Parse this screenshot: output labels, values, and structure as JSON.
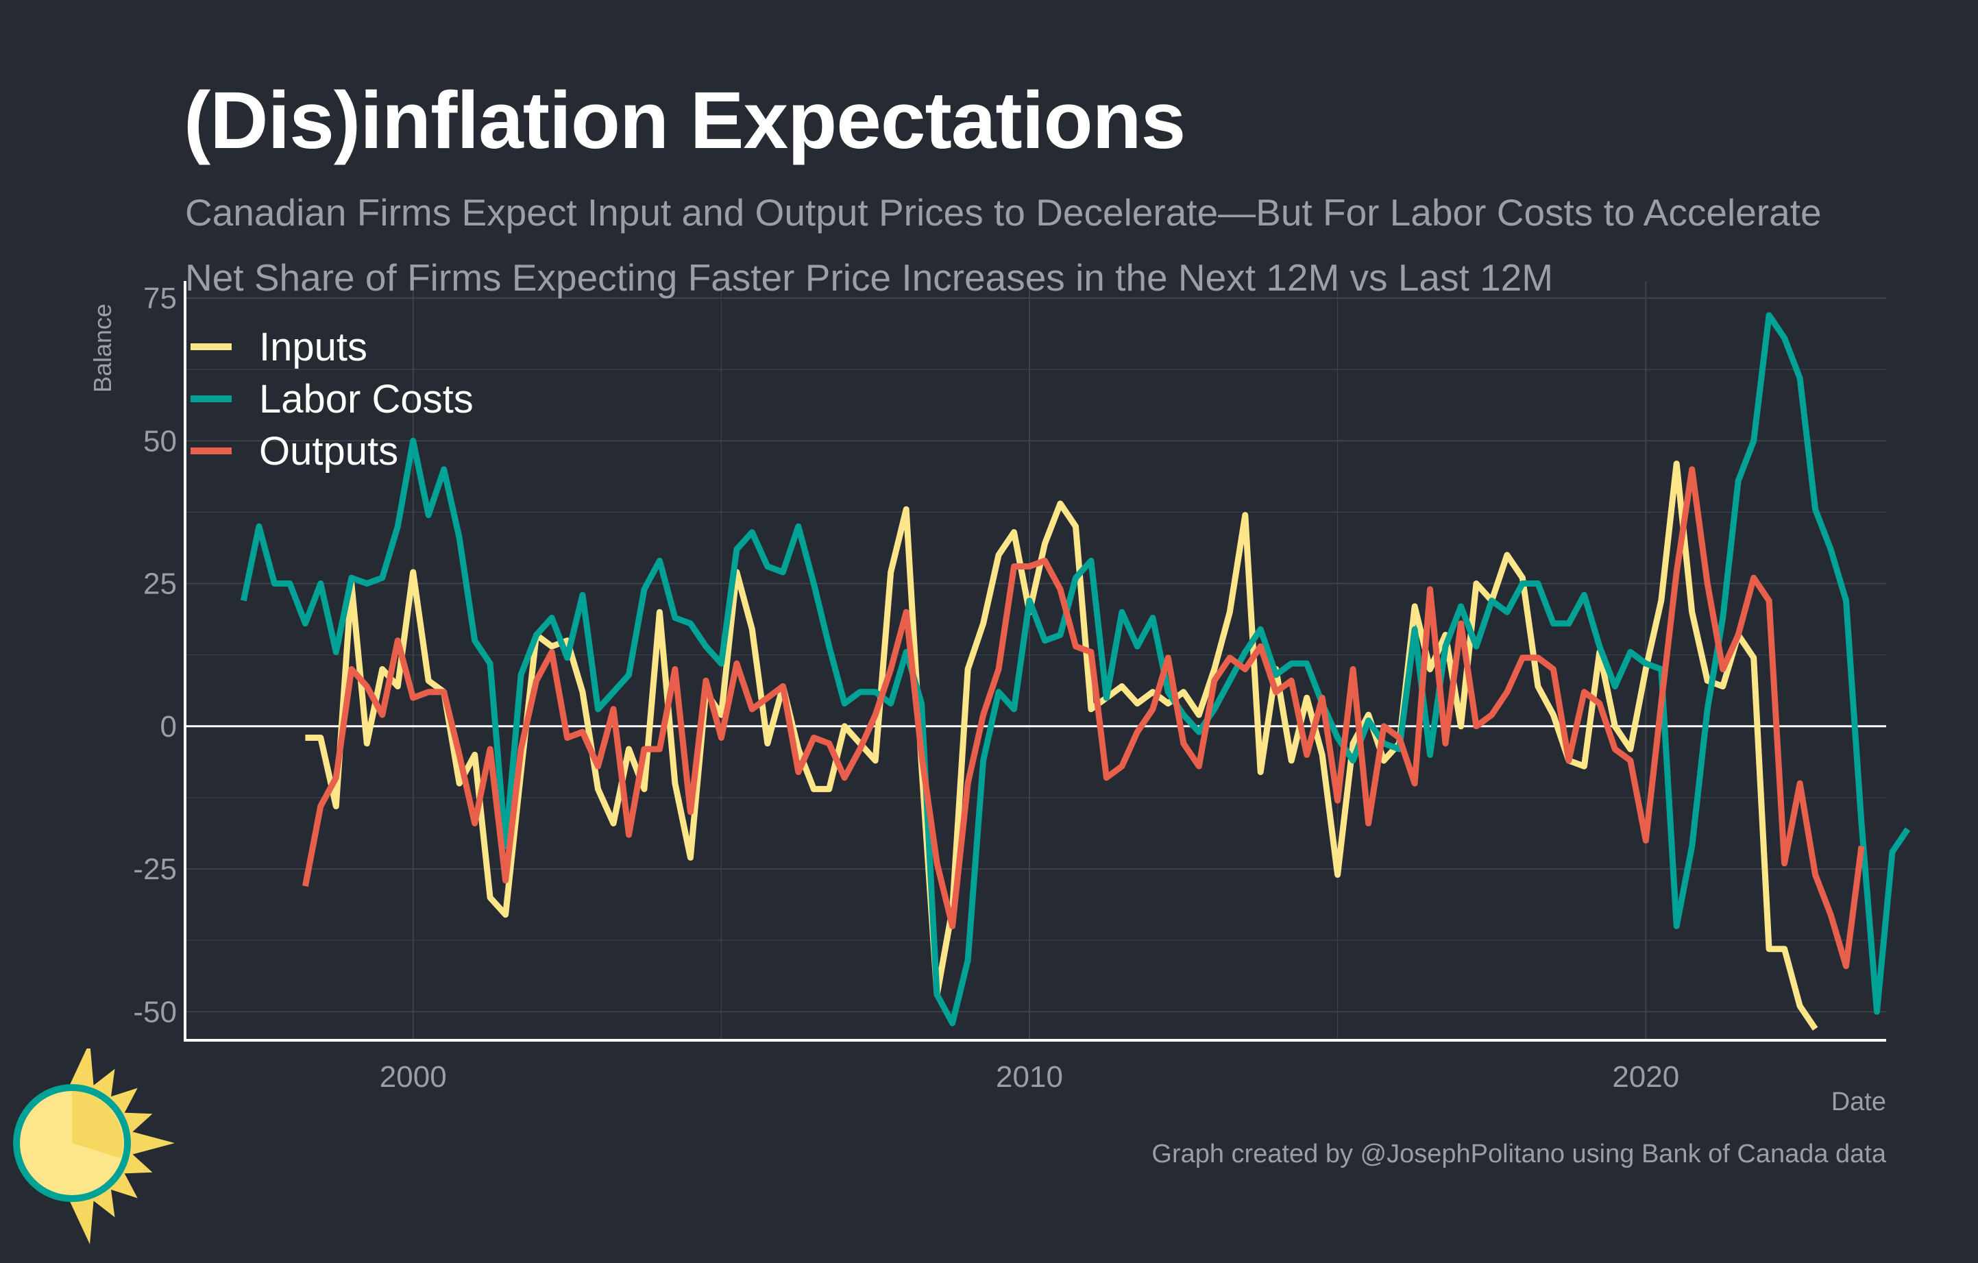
{
  "title": "(Dis)inflation Expectations",
  "subtitle": "Canadian Firms Expect Input and Output Prices to Decelerate—But For Labor Costs to Accelerate",
  "note": "Net Share of Firms Expecting Faster Price Increases in the Next 12M vs Last 12M",
  "caption": "Graph created by @JosephPolitano using Bank of Canada data",
  "colors": {
    "background": "#252a33",
    "grid": "#3d424b",
    "axis": "#ffffff",
    "text_muted": "#9a9ea6",
    "inputs": "#fde68a",
    "labor_costs": "#00a295",
    "outputs": "#e8604c"
  },
  "logo_icon": "sun-icon",
  "chart_data": {
    "type": "line",
    "xlabel": "Date",
    "ylabel": "Balance",
    "xlim": [
      1996.3,
      2023.9
    ],
    "ylim": [
      -55,
      78
    ],
    "x_ticks": [
      2000,
      2010,
      2020
    ],
    "x_tick_labels": [
      "2000",
      "2010",
      "2020"
    ],
    "y_ticks": [
      -50,
      -25,
      0,
      25,
      50,
      75
    ],
    "y_tick_labels": [
      "-50",
      "-25",
      "0",
      "25",
      "50",
      "75"
    ],
    "grid": true,
    "legend_position": "top-left",
    "series": [
      {
        "name": "Inputs",
        "color_key": "inputs",
        "start": 1998.25,
        "step": 0.25,
        "values": [
          -2,
          -2,
          -14,
          25,
          -3,
          10,
          7,
          27,
          8,
          6,
          -10,
          -5,
          -30,
          -33,
          -8,
          16,
          14,
          15,
          6,
          -11,
          -17,
          -4,
          -11,
          20,
          -10,
          -23,
          6,
          2,
          27,
          17,
          -3,
          7,
          -4,
          -11,
          -11,
          0,
          -3,
          -6,
          27,
          38,
          -7,
          -47,
          -32,
          10,
          18,
          30,
          34,
          20,
          32,
          39,
          35,
          3,
          5,
          7,
          4,
          6,
          4,
          6,
          2,
          10,
          20,
          37,
          -8,
          10,
          -6,
          5,
          -5,
          -26,
          -3,
          2,
          -6,
          -3,
          21,
          10,
          16,
          0,
          25,
          22,
          30,
          26,
          7,
          2,
          -6,
          -7,
          13,
          0,
          -4,
          10,
          22,
          46,
          20,
          8,
          7,
          16,
          12,
          -39,
          -39,
          -49,
          -53
        ]
      },
      {
        "name": "Labor Costs",
        "color_key": "labor_costs",
        "start": 1997.25,
        "step": 0.25,
        "values": [
          22,
          35,
          25,
          25,
          18,
          25,
          13,
          26,
          25,
          26,
          35,
          50,
          37,
          45,
          33,
          15,
          11,
          -21,
          9,
          16,
          19,
          12,
          23,
          3,
          6,
          9,
          24,
          29,
          19,
          18,
          14,
          11,
          31,
          34,
          28,
          27,
          35,
          25,
          14,
          4,
          6,
          6,
          4,
          13,
          4,
          -47,
          -52,
          -41,
          -6,
          6,
          3,
          22,
          15,
          16,
          26,
          29,
          5,
          20,
          14,
          19,
          6,
          2,
          -1,
          3,
          8,
          13,
          17,
          9,
          11,
          11,
          4,
          -2,
          -6,
          1,
          -3,
          -4,
          17,
          -5,
          14,
          21,
          14,
          22,
          20,
          25,
          25,
          18,
          18,
          23,
          14,
          7,
          13,
          11,
          10,
          -35,
          -21,
          3,
          19,
          43,
          50,
          72,
          68,
          61,
          38,
          31,
          22,
          -17,
          -50,
          -22,
          -18
        ]
      },
      {
        "name": "Outputs",
        "color_key": "outputs",
        "start": 1998.25,
        "step": 0.25,
        "values": [
          -28,
          -14,
          -9,
          10,
          7,
          2,
          15,
          5,
          6,
          6,
          -5,
          -17,
          -4,
          -27,
          -4,
          8,
          13,
          -2,
          -1,
          -7,
          3,
          -19,
          -4,
          -4,
          10,
          -15,
          8,
          -2,
          11,
          3,
          5,
          7,
          -8,
          -2,
          -3,
          -9,
          -4,
          2,
          10,
          20,
          -5,
          -24,
          -35,
          -10,
          2,
          10,
          28,
          28,
          29,
          24,
          14,
          13,
          -9,
          -7,
          -1,
          3,
          12,
          -3,
          -7,
          8,
          12,
          10,
          14,
          6,
          8,
          -5,
          5,
          -13,
          10,
          -17,
          0,
          -2,
          -10,
          24,
          -3,
          18,
          0,
          2,
          6,
          12,
          12,
          10,
          -6,
          6,
          4,
          -4,
          -6,
          -20,
          4,
          27,
          45,
          25,
          10,
          16,
          26,
          22,
          -24,
          -10,
          -26,
          -33,
          -42,
          -21
        ]
      }
    ]
  }
}
